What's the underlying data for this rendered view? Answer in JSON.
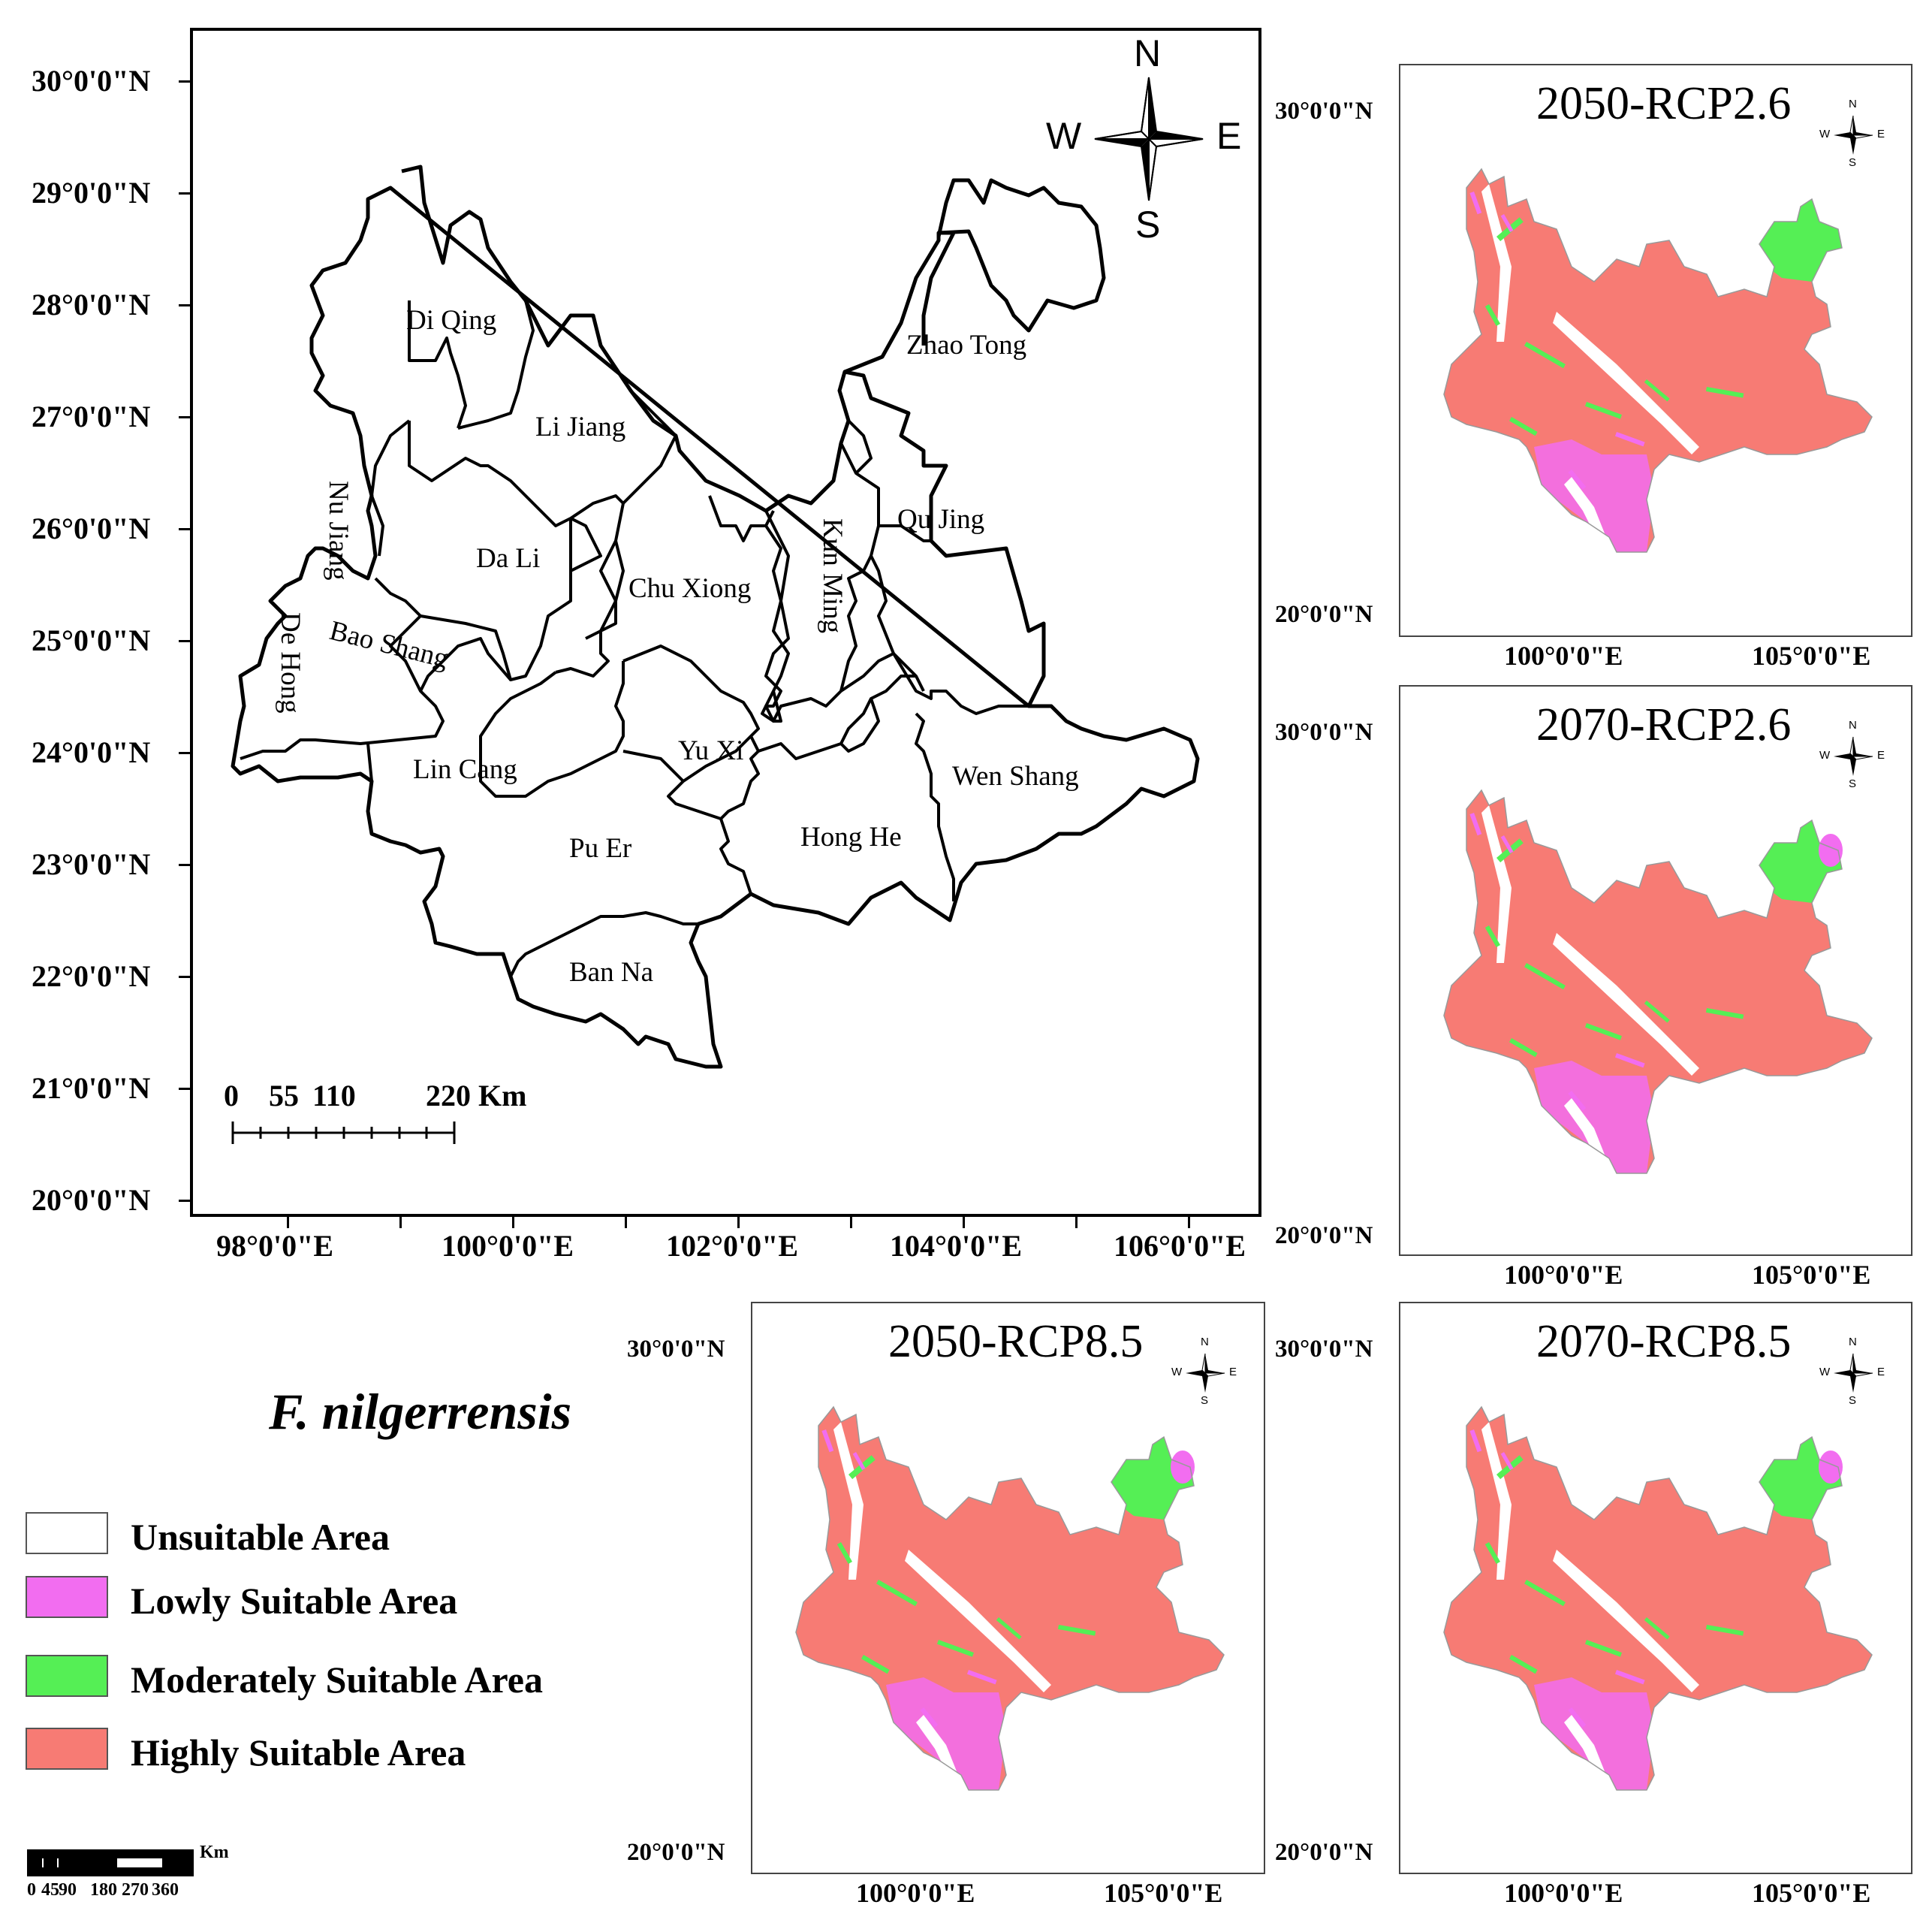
{
  "main_map": {
    "lat_labels": [
      "30°0'0\"N",
      "29°0'0\"N",
      "28°0'0\"N",
      "27°0'0\"N",
      "26°0'0\"N",
      "25°0'0\"N",
      "24°0'0\"N",
      "23°0'0\"N",
      "22°0'0\"N",
      "21°0'0\"N",
      "20°0'0\"N"
    ],
    "lon_labels": [
      "98°0'0\"E",
      "100°0'0\"E",
      "102°0'0\"E",
      "104°0'0\"E",
      "106°0'0\"E"
    ],
    "regions": {
      "di_qing": "Di Qing",
      "zhao_tong": "Zhao Tong",
      "li_jiang": "Li Jiang",
      "nu_jiang": "Nu Jiang",
      "qu_jing": "Qu Jing",
      "kun_ming": "Kun Ming",
      "da_li": "Da Li",
      "chu_xiong": "Chu Xiong",
      "de_hong": "De Hong",
      "bao_shang": "Bao Shang",
      "yu_xi": "Yu Xi",
      "lin_cang": "Lin Cang",
      "wen_shang": "Wen Shang",
      "hong_he": "Hong He",
      "pu_er": "Pu Er",
      "ban_na": "Ban Na"
    },
    "compass": {
      "n": "N",
      "s": "S",
      "e": "E",
      "w": "W"
    },
    "scale": {
      "labels": [
        "0",
        "55",
        "110",
        "220 Km"
      ]
    }
  },
  "panels": [
    {
      "title": "2050-RCP2.6",
      "lat_top": "30°0'0\"N",
      "lat_bottom": "20°0'0\"N",
      "lon_left": "100°0'0\"E",
      "lon_right": "105°0'0\"E"
    },
    {
      "title": "2070-RCP2.6",
      "lat_top": "30°0'0\"N",
      "lat_bottom": "20°0'0\"N",
      "lon_left": "100°0'0\"E",
      "lon_right": "105°0'0\"E"
    },
    {
      "title": "2050-RCP8.5",
      "lat_top": "30°0'0\"N",
      "lat_bottom": "20°0'0\"N",
      "lon_left": "100°0'0\"E",
      "lon_right": "105°0'0\"E"
    },
    {
      "title": "2070-RCP8.5",
      "lat_top": "30°0'0\"N",
      "lat_bottom": "20°0'0\"N",
      "lon_left": "100°0'0\"E",
      "lon_right": "105°0'0\"E"
    }
  ],
  "small_compass": {
    "n": "N",
    "s": "S",
    "e": "E",
    "w": "W"
  },
  "species": "F. nilgerrensis",
  "legend": [
    {
      "label": "Unsuitable Area",
      "color": "#ffffff"
    },
    {
      "label": "Lowly Suitable Area",
      "color": "#f26df0"
    },
    {
      "label": "Moderately Suitable Area",
      "color": "#55ef55"
    },
    {
      "label": "Highly Suitable Area",
      "color": "#f77b74"
    }
  ],
  "bottom_scale": {
    "unit": "Km",
    "labels": [
      "0",
      "45",
      "90",
      "180",
      "270",
      "360"
    ]
  }
}
